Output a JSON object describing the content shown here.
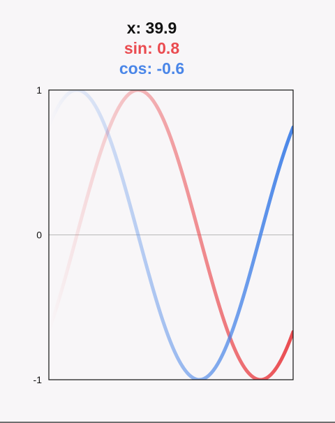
{
  "readout": {
    "x_text": "x: 39.9",
    "sin_text": "sin: 0.8",
    "cos_text": "cos: -0.6"
  },
  "colors": {
    "background": "#f8f6f8",
    "sin": "#ea4b50",
    "cos": "#4a86e8",
    "zero_line": "#b9b9b9",
    "frame": "#111111"
  },
  "chart_data": {
    "type": "line",
    "title": "",
    "xlabel": "",
    "ylabel": "",
    "xlim": [
      -0.72,
      5.55
    ],
    "ylim": [
      -1,
      1
    ],
    "yticks": [
      1,
      0,
      -1
    ],
    "ytick_labels": [
      "1",
      "0",
      "-1"
    ],
    "grid": false,
    "zero_line": true,
    "trail_fade": "older samples fade toward transparent on the left",
    "series": [
      {
        "name": "sin",
        "function": "sin",
        "color": "#ea4b50"
      },
      {
        "name": "cos",
        "function": "cos",
        "color": "#4a86e8"
      }
    ]
  }
}
